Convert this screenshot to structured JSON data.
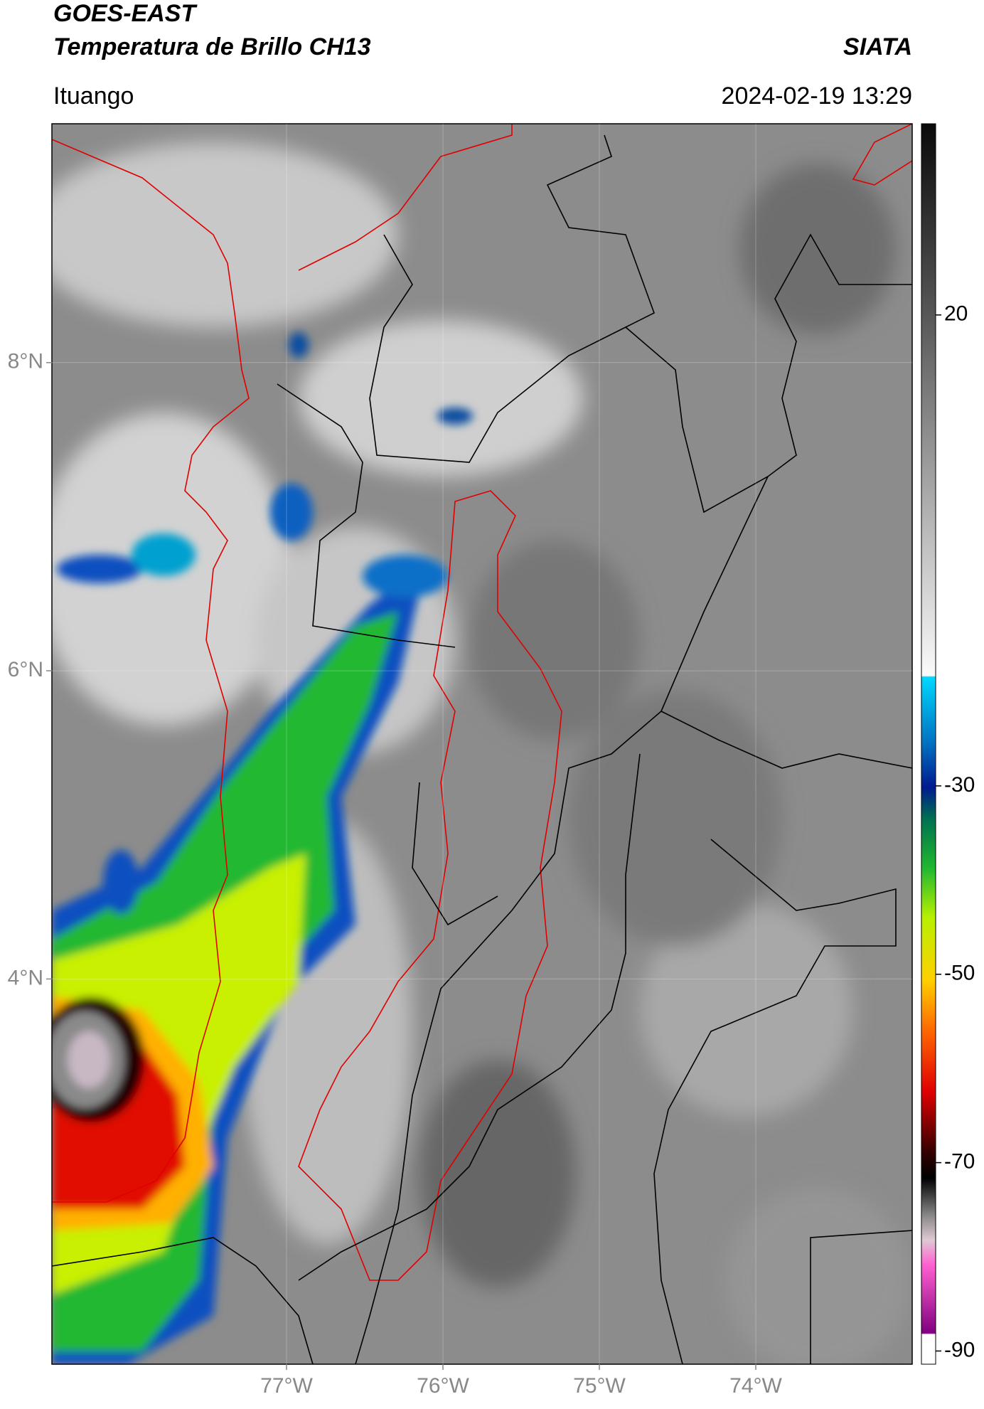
{
  "header": {
    "title": "GOES-EAST",
    "subtitle": "Temperatura de Brillo CH13",
    "brand": "SIATA",
    "location": "Ituango",
    "datetime": "2024-02-19 13:29"
  },
  "chart_data": {
    "type": "map",
    "xlim": [
      -78.5,
      -73
    ],
    "ylim": [
      1.5,
      9.55
    ],
    "xticks": [
      {
        "value": -77,
        "label": "77°W"
      },
      {
        "value": -76,
        "label": "76°W"
      },
      {
        "value": -75,
        "label": "75°W"
      },
      {
        "value": -74,
        "label": "74°W"
      }
    ],
    "yticks": [
      {
        "value": 8,
        "label": "8°N"
      },
      {
        "value": 6,
        "label": "6°N"
      },
      {
        "value": 4,
        "label": "4°N"
      }
    ],
    "grid": true,
    "colorbar": {
      "lim": [
        -91.4,
        40.3
      ],
      "ticks": [
        20,
        -30,
        -50,
        -70,
        -90
      ]
    }
  }
}
